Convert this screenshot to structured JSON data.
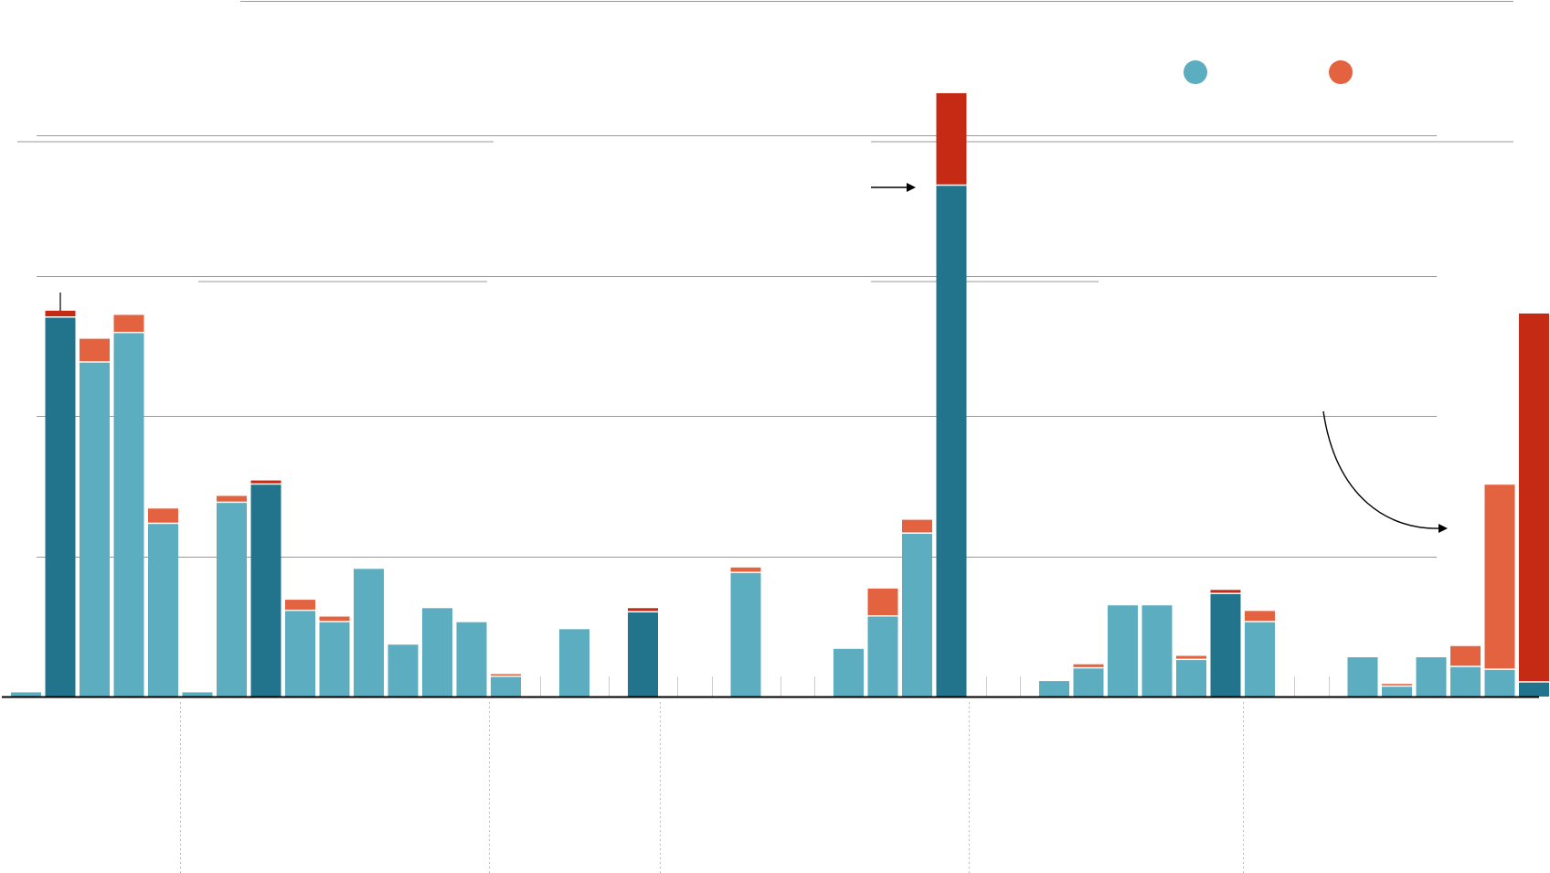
{
  "colors": {
    "base": "#5badbf",
    "extra": "#e36240",
    "base_highlight": "#21748b",
    "extra_highlight": "#c52a14",
    "gridline": "#999999",
    "axis": "#000000",
    "divider": "#bbbbbb"
  },
  "legend": {
    "items": [
      {
        "color_key": "base"
      },
      {
        "color_key": "extra"
      }
    ]
  },
  "chart_data": {
    "type": "bar",
    "stacked": true,
    "ylim": [
      0,
      43
    ],
    "gridlines": [
      10,
      20,
      30,
      40
    ],
    "group_dividers_after_index": [
      4,
      13,
      18,
      27,
      35
    ],
    "bars": [
      {
        "base": 0.3,
        "extra": 0,
        "highlight": false
      },
      {
        "base": 27,
        "extra": 0.5,
        "highlight": true
      },
      {
        "base": 23.8,
        "extra": 1.7,
        "highlight": false
      },
      {
        "base": 25.9,
        "extra": 1.3,
        "highlight": false
      },
      {
        "base": 12.3,
        "extra": 1.1,
        "highlight": false
      },
      {
        "base": 0.3,
        "extra": 0,
        "highlight": false
      },
      {
        "base": 13.8,
        "extra": 0.5,
        "highlight": false
      },
      {
        "base": 15.1,
        "extra": 0.3,
        "highlight": true
      },
      {
        "base": 6.1,
        "extra": 0.8,
        "highlight": false
      },
      {
        "base": 5.3,
        "extra": 0.4,
        "highlight": false
      },
      {
        "base": 9.1,
        "extra": 0,
        "highlight": false
      },
      {
        "base": 3.7,
        "extra": 0,
        "highlight": false
      },
      {
        "base": 6.3,
        "extra": 0,
        "highlight": false
      },
      {
        "base": 5.3,
        "extra": 0,
        "highlight": false
      },
      {
        "base": 1.4,
        "extra": 0.2,
        "highlight": false
      },
      {
        "base": null,
        "extra": null,
        "highlight": false
      },
      {
        "base": 4.8,
        "extra": 0,
        "highlight": false
      },
      {
        "base": null,
        "extra": null,
        "highlight": false
      },
      {
        "base": 6.0,
        "extra": 0.3,
        "highlight": true
      },
      {
        "base": null,
        "extra": null,
        "highlight": false
      },
      {
        "base": null,
        "extra": null,
        "highlight": false
      },
      {
        "base": 8.8,
        "extra": 0.4,
        "highlight": false
      },
      {
        "base": null,
        "extra": null,
        "highlight": false
      },
      {
        "base": null,
        "extra": null,
        "highlight": false
      },
      {
        "base": 3.4,
        "extra": 0,
        "highlight": false
      },
      {
        "base": 5.7,
        "extra": 2.0,
        "highlight": false
      },
      {
        "base": 11.6,
        "extra": 1.0,
        "highlight": false
      },
      {
        "base": 36.4,
        "extra": 6.6,
        "highlight": true
      },
      {
        "base": null,
        "extra": null,
        "highlight": false
      },
      {
        "base": null,
        "extra": null,
        "highlight": false
      },
      {
        "base": 1.1,
        "extra": 0,
        "highlight": false
      },
      {
        "base": 2.0,
        "extra": 0.3,
        "highlight": false
      },
      {
        "base": 6.5,
        "extra": 0,
        "highlight": false
      },
      {
        "base": 6.5,
        "extra": 0,
        "highlight": false
      },
      {
        "base": 2.6,
        "extra": 0.3,
        "highlight": false
      },
      {
        "base": 7.3,
        "extra": 0.3,
        "highlight": true
      },
      {
        "base": 5.3,
        "extra": 0.8,
        "highlight": false
      },
      {
        "base": null,
        "extra": null,
        "highlight": false
      },
      {
        "base": null,
        "extra": null,
        "highlight": false
      },
      {
        "base": 2.8,
        "extra": 0,
        "highlight": false
      },
      {
        "base": 0.7,
        "extra": 0.2,
        "highlight": false
      },
      {
        "base": 2.8,
        "extra": 0,
        "highlight": false
      },
      {
        "base": 2.1,
        "extra": 1.5,
        "highlight": false
      },
      {
        "base": 1.9,
        "extra": 13.2,
        "highlight": false
      },
      {
        "base": 1.0,
        "extra": 26.3,
        "highlight": true
      }
    ]
  }
}
